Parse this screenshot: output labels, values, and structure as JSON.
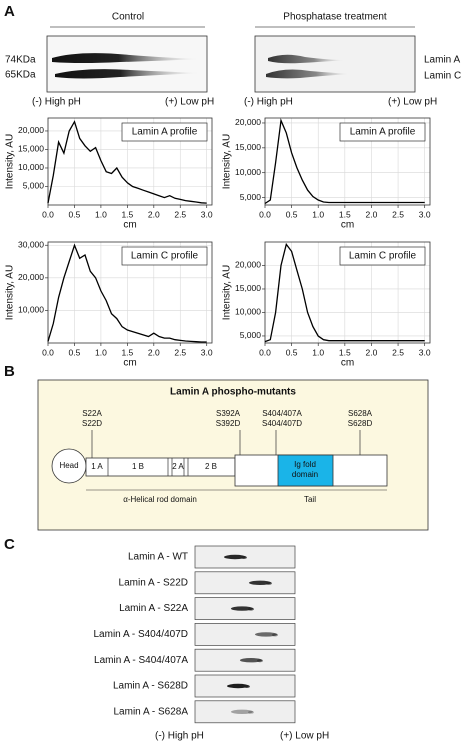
{
  "panel_a": {
    "label": "A",
    "control": "Control",
    "phosphatase": "Phosphatase treatment",
    "markers": [
      "74KDa",
      "65KDa"
    ],
    "bands": [
      "Lamin A",
      "Lamin C"
    ],
    "ph": [
      "(-) High pH",
      "(+) Low pH"
    ]
  },
  "chart_data": [
    {
      "type": "line",
      "x_label": "cm",
      "y_label": "Intensity, AU",
      "x": [
        0,
        0.1,
        0.2,
        0.3,
        0.4,
        0.5,
        0.6,
        0.7,
        0.8,
        0.9,
        1,
        1.1,
        1.2,
        1.3,
        1.4,
        1.5,
        1.6,
        1.7,
        1.8,
        1.9,
        2,
        2.1,
        2.2,
        2.3,
        2.4,
        2.5,
        2.6,
        2.7,
        2.8,
        2.9,
        3
      ],
      "series": [
        {
          "name": "Lamin A profile",
          "color": "#000000",
          "values": [
            500,
            8000,
            17000,
            14000,
            20000,
            22500,
            18000,
            16000,
            14500,
            15500,
            12000,
            9000,
            8500,
            10000,
            7500,
            6000,
            5000,
            4500,
            4000,
            3500,
            3000,
            2500,
            2000,
            2500,
            1800,
            1500,
            1200,
            1000,
            800,
            600,
            500
          ]
        }
      ],
      "xlim": [
        0,
        3.1
      ],
      "xticks": [
        {
          "value": 0,
          "label": "0.0"
        },
        0.5,
        {
          "value": 1,
          "label": "1.0"
        },
        1.5,
        {
          "value": 2,
          "label": "2.0"
        },
        2.5,
        {
          "value": 3,
          "label": "3.0"
        }
      ],
      "ylim": [
        0,
        23500
      ],
      "yticks": [
        {
          "value": 5000,
          "label": "5,000"
        },
        {
          "value": 10000,
          "label": "10,000"
        },
        {
          "value": 15000,
          "label": "15,000"
        },
        {
          "value": 20000,
          "label": "20,000"
        }
      ],
      "grid": true
    },
    {
      "type": "line",
      "x_label": "cm",
      "y_label": "Intensity, AU",
      "x": [
        0,
        0.1,
        0.2,
        0.3,
        0.4,
        0.5,
        0.6,
        0.7,
        0.8,
        0.9,
        1,
        1.1,
        1.2,
        1.3,
        1.4,
        1.5,
        1.6,
        1.7,
        1.8,
        1.9,
        2,
        2.1,
        2.2,
        2.3,
        2.4,
        2.5,
        2.6,
        2.7,
        2.8,
        2.9,
        3
      ],
      "series": [
        {
          "name": "Lamin A profile",
          "color": "#000000",
          "values": [
            3800,
            4500,
            12000,
            20500,
            18000,
            14000,
            11000,
            8500,
            6500,
            5200,
            4500,
            4100,
            4000,
            4000,
            4000,
            4000,
            4000,
            4000,
            4000,
            4000,
            4000,
            4000,
            4000,
            4000,
            4000,
            4000,
            4000,
            4000,
            4000,
            4000,
            4000
          ]
        }
      ],
      "xlim": [
        0,
        3.1
      ],
      "xticks": [
        {
          "value": 0,
          "label": "0.0"
        },
        0.5,
        {
          "value": 1,
          "label": "1.0"
        },
        1.5,
        {
          "value": 2,
          "label": "2.0"
        },
        2.5,
        {
          "value": 3,
          "label": "3.0"
        }
      ],
      "ylim": [
        3500,
        21000
      ],
      "yticks": [
        {
          "value": 5000,
          "label": "5,000"
        },
        {
          "value": 10000,
          "label": "10,000"
        },
        {
          "value": 15000,
          "label": "15,000"
        },
        {
          "value": 20000,
          "label": "20,000"
        }
      ],
      "grid": true
    },
    {
      "type": "line",
      "x_label": "cm",
      "y_label": "Intensity, AU",
      "x": [
        0,
        0.1,
        0.2,
        0.3,
        0.4,
        0.5,
        0.6,
        0.7,
        0.8,
        0.9,
        1,
        1.1,
        1.2,
        1.3,
        1.4,
        1.5,
        1.6,
        1.7,
        1.8,
        1.9,
        2,
        2.1,
        2.2,
        2.3,
        2.4,
        2.5,
        2.6,
        2.7,
        2.8,
        2.9,
        3
      ],
      "series": [
        {
          "name": "Lamin C profile",
          "color": "#000000",
          "values": [
            500,
            6000,
            14000,
            20000,
            25000,
            30000,
            26000,
            27000,
            22000,
            20000,
            16000,
            13000,
            9000,
            7500,
            5000,
            4000,
            3500,
            3000,
            2500,
            2000,
            3000,
            2000,
            1500,
            1500,
            1000,
            800,
            600,
            500,
            400,
            300,
            300
          ]
        }
      ],
      "xlim": [
        0,
        3.1
      ],
      "xticks": [
        {
          "value": 0,
          "label": "0.0"
        },
        0.5,
        {
          "value": 1,
          "label": "1.0"
        },
        1.5,
        {
          "value": 2,
          "label": "2.0"
        },
        2.5,
        {
          "value": 3,
          "label": "3.0"
        }
      ],
      "ylim": [
        0,
        31000
      ],
      "yticks": [
        {
          "value": 10000,
          "label": "10,000"
        },
        {
          "value": 20000,
          "label": "20,000"
        },
        {
          "value": 30000,
          "label": "30,000"
        }
      ],
      "grid": true
    },
    {
      "type": "line",
      "x_label": "cm",
      "y_label": "Intensity, AU",
      "x": [
        0,
        0.1,
        0.2,
        0.3,
        0.4,
        0.5,
        0.6,
        0.7,
        0.8,
        0.9,
        1,
        1.1,
        1.2,
        1.3,
        1.4,
        1.5,
        1.6,
        1.7,
        1.8,
        1.9,
        2,
        2.1,
        2.2,
        2.3,
        2.4,
        2.5,
        2.6,
        2.7,
        2.8,
        2.9,
        3
      ],
      "series": [
        {
          "name": "Lamin C profile",
          "color": "#000000",
          "values": [
            3800,
            4200,
            10000,
            20000,
            24500,
            23000,
            19000,
            15000,
            10000,
            7000,
            5000,
            4200,
            4000,
            4000,
            4000,
            4000,
            4000,
            4000,
            4000,
            4000,
            4000,
            4000,
            4000,
            4000,
            4000,
            4000,
            4000,
            4000,
            4000,
            4000,
            4000
          ]
        }
      ],
      "xlim": [
        0,
        3.1
      ],
      "xticks": [
        {
          "value": 0,
          "label": "0.0"
        },
        0.5,
        {
          "value": 1,
          "label": "1.0"
        },
        1.5,
        {
          "value": 2,
          "label": "2.0"
        },
        2.5,
        {
          "value": 3,
          "label": "3.0"
        }
      ],
      "ylim": [
        3500,
        25000
      ],
      "yticks": [
        {
          "value": 5000,
          "label": "5,000"
        },
        {
          "value": 10000,
          "label": "10,000"
        },
        {
          "value": 15000,
          "label": "15,000"
        },
        {
          "value": 20000,
          "label": "20,000"
        }
      ],
      "grid": true
    }
  ],
  "panel_b": {
    "label": "B",
    "title": "Lamin A phospho-mutants",
    "sites": [
      [
        "S22A",
        "S22D"
      ],
      [
        "S392A",
        "S392D"
      ],
      [
        "S404/407A",
        "S404/407D"
      ],
      [
        "S628A",
        "S628D"
      ]
    ],
    "head": "Head",
    "segments": [
      "1 A",
      "1 B",
      "2 A",
      "2 B"
    ],
    "ig": [
      "Ig fold",
      "domain"
    ],
    "rod": "α-Helical rod domain",
    "tail": "Tail"
  },
  "panel_c": {
    "label": "C",
    "rows": [
      "Lamin A - WT",
      "Lamin A - S22D",
      "Lamin A - S22A",
      "Lamin A - S404/407D",
      "Lamin A - S404/407A",
      "Lamin A - S628D",
      "Lamin A - S628A"
    ],
    "ph": [
      "(-) High pH",
      "(+) Low pH"
    ]
  }
}
